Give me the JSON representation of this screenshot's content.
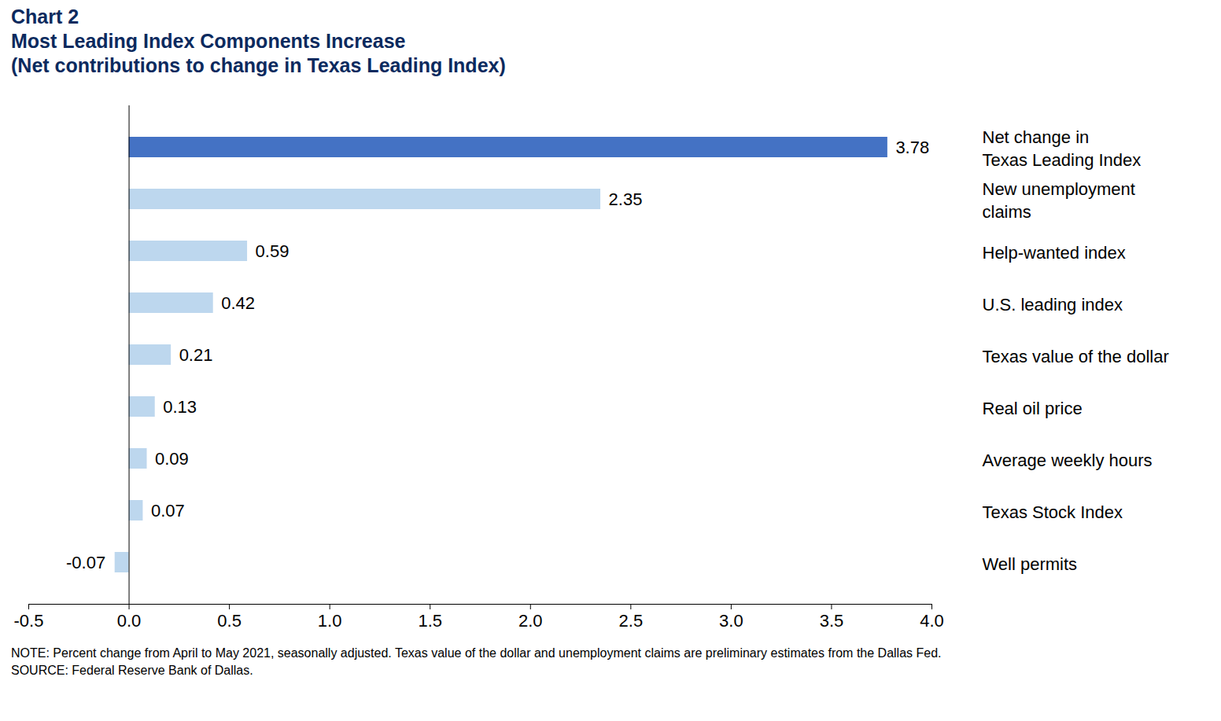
{
  "chart_data": {
    "type": "bar",
    "orientation": "horizontal",
    "title": "Chart 2",
    "subtitle": [
      "Most Leading Index Components Increase",
      "(Net contributions to change in Texas Leading Index)"
    ],
    "categories": [
      "Net change in\nTexas Leading Index",
      "New unemployment\nclaims",
      "Help-wanted index",
      "U.S. leading index",
      "Texas value of the dollar",
      "Real oil price",
      "Average weekly hours",
      "Texas Stock Index",
      "Well permits"
    ],
    "values": [
      3.78,
      2.35,
      0.59,
      0.42,
      0.21,
      0.13,
      0.09,
      0.07,
      -0.07
    ],
    "colors": [
      "#4472c4",
      "#bdd7ee",
      "#bdd7ee",
      "#bdd7ee",
      "#bdd7ee",
      "#bdd7ee",
      "#bdd7ee",
      "#bdd7ee",
      "#bdd7ee"
    ],
    "xlim": [
      -0.5,
      4.0
    ],
    "xticks": [
      -0.5,
      {
        "value": 0,
        "label": "0.0"
      },
      0.5,
      {
        "value": 1,
        "label": "1.0"
      },
      1.5,
      {
        "value": 2,
        "label": "2.0"
      },
      2.5,
      {
        "value": 3,
        "label": "3.0"
      },
      3.5,
      {
        "value": 4,
        "label": "4.0"
      }
    ],
    "data_labels": true,
    "grid": false,
    "note": "NOTE: Percent change from April to May 2021, seasonally adjusted. Texas value of the dollar and unemployment claims are preliminary estimates from the Dallas Fed.",
    "source": "SOURCE: Federal Reserve Bank of Dallas."
  }
}
